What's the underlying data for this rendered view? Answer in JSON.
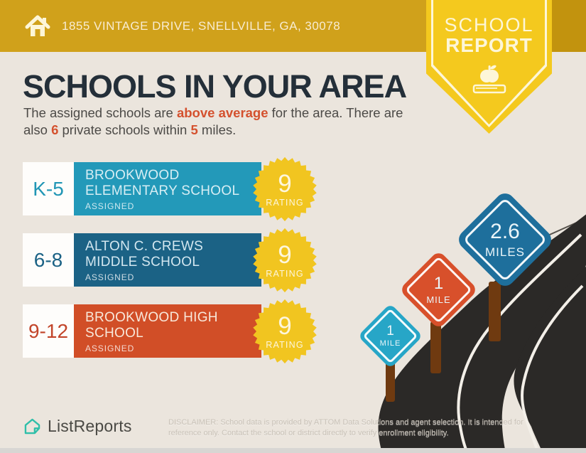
{
  "colors": {
    "topbar": "#d0a11b",
    "topbar_right": "#c2930e",
    "ribbon": "#f4c91e",
    "heading": "#242f39",
    "body_text": "#4c4a47",
    "accent": "#d4512e",
    "starburst": "#f1c520",
    "starburst_text": "#fdf6dd",
    "road": "#2b2927",
    "road_line": "#f3efe8",
    "horizon_line": "#56514b",
    "post": "#6f3a10",
    "brand_teal": "#2fbfa9",
    "sign_text": "#eaf5f9"
  },
  "header": {
    "address": "1855 VINTAGE DRIVE, SNELLVILLE, GA, 30078"
  },
  "ribbon": {
    "line1": "SCHOOL",
    "line2": "REPORT"
  },
  "intro": {
    "title": "SCHOOLS IN YOUR AREA",
    "text_1": "The assigned schools are ",
    "highlight_1": "above average",
    "text_2": " for the area. There are also ",
    "highlight_2": "6",
    "text_3": " private schools within ",
    "highlight_3": "5",
    "text_4": " miles."
  },
  "schools": [
    {
      "grades": "K-5",
      "name_line1": "BROOKWOOD",
      "name_line2": "ELEMENTARY SCHOOL",
      "status": "ASSIGNED",
      "rating": "9",
      "rating_label": "RATING",
      "bar_color": "#2399b9",
      "grade_color": "#2196b5",
      "name_color": "#d8eef4"
    },
    {
      "grades": "6-8",
      "name_line1": "ALTON C. CREWS",
      "name_line2": "MIDDLE SCHOOL",
      "status": "ASSIGNED",
      "rating": "9",
      "rating_label": "RATING",
      "bar_color": "#1b6285",
      "grade_color": "#1b6285",
      "name_color": "#d3e7f0"
    },
    {
      "grades": "9-12",
      "name_line1": "BROOKWOOD HIGH",
      "name_line2": "SCHOOL",
      "status": "ASSIGNED",
      "rating": "9",
      "rating_label": "RATING",
      "bar_color": "#d14e27",
      "grade_color": "#c2452a",
      "name_color": "#f8e8da"
    }
  ],
  "signs": [
    {
      "distance": "1",
      "unit": "MILE",
      "color": "#27a6c7"
    },
    {
      "distance": "1",
      "unit": "MILE",
      "color": "#d8502b"
    },
    {
      "distance": "2.6",
      "unit": "MILES",
      "color": "#1e6f9c"
    }
  ],
  "footer": {
    "brand": "ListReports",
    "disclaimer": "DISCLAIMER: School data is provided by ATTOM Data Solutions and agent selection. It is intended for reference only. Contact the school or district directly to verify enrollment eligibility."
  }
}
